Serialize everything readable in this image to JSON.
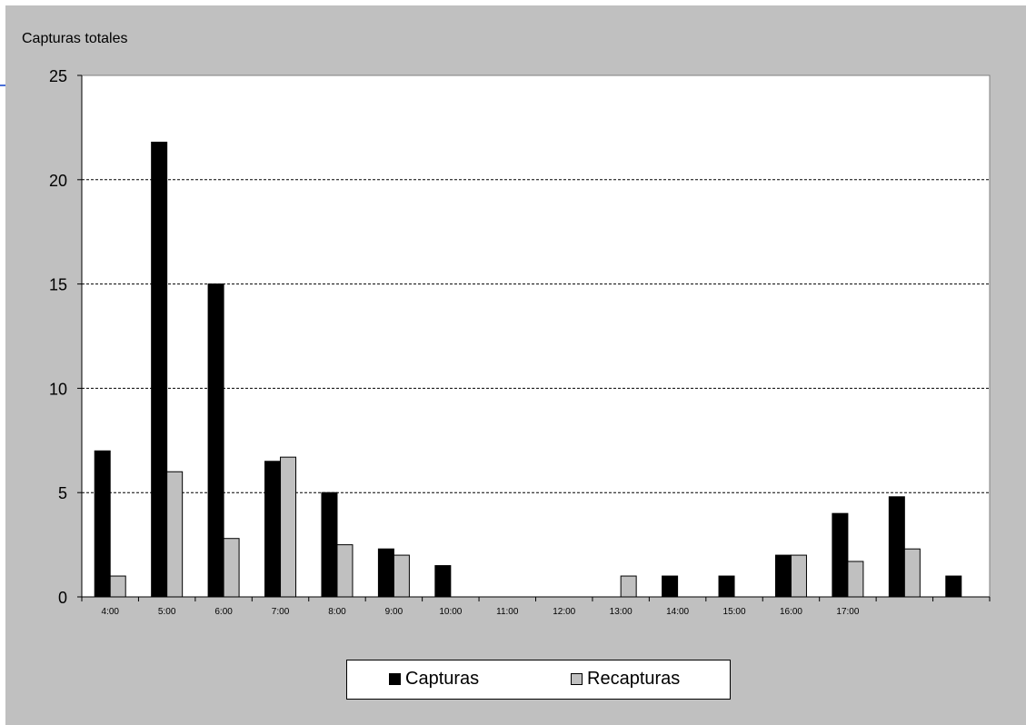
{
  "chart_data": {
    "type": "bar",
    "ylabel": "Capturas totales",
    "ylim": [
      0,
      25
    ],
    "yticks": [
      "0",
      "5",
      "10",
      "15",
      "20",
      "25"
    ],
    "ytick_values": [
      0,
      5,
      10,
      15,
      20,
      25
    ],
    "grid": "horizontal dashed",
    "categories": [
      "4:00",
      "5:00",
      "6:00",
      "7:00",
      "8:00",
      "9:00",
      "10:00",
      "11:00",
      "12:00",
      "13:00",
      "14:00",
      "15:00",
      "16:00",
      "17:00",
      "",
      ""
    ],
    "series": [
      {
        "name": "Capturas",
        "color": "#000000",
        "values": [
          7,
          21.8,
          15,
          6.5,
          5,
          2.3,
          1.5,
          0,
          0,
          0,
          1,
          1,
          2,
          4,
          4.8,
          1
        ]
      },
      {
        "name": "Recapturas",
        "color": "#c0c0c0",
        "values": [
          1,
          6,
          2.8,
          6.7,
          2.5,
          2,
          0,
          0,
          0,
          1,
          0,
          0,
          2,
          1.7,
          2.3,
          0
        ]
      }
    ],
    "legend": "bottom"
  }
}
